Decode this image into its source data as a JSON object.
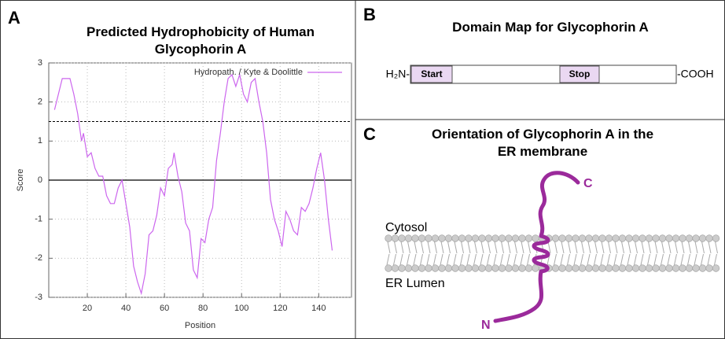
{
  "chart_data": {
    "type": "line",
    "panel_label": "A",
    "title": "Predicted Hydrophobicity of Human Glycophorin A",
    "xlabel": "Position",
    "ylabel": "Score",
    "x": [
      3,
      5,
      7,
      9,
      11,
      13,
      15,
      17,
      18,
      20,
      22,
      24,
      26,
      28,
      30,
      32,
      34,
      36,
      38,
      40,
      42,
      44,
      46,
      48,
      50,
      52,
      54,
      56,
      58,
      60,
      62,
      64,
      65,
      67,
      69,
      71,
      73,
      75,
      77,
      79,
      81,
      83,
      85,
      87,
      89,
      91,
      93,
      95,
      97,
      99,
      101,
      103,
      105,
      107,
      109,
      111,
      113,
      115,
      117,
      119,
      121,
      123,
      125,
      127,
      129,
      131,
      133,
      135,
      137,
      139,
      141,
      143,
      145,
      147
    ],
    "series": [
      {
        "name": "Hydropath. / Kyte & Doolittle",
        "color": "#cc66ee",
        "values": [
          1.8,
          2.2,
          2.6,
          2.6,
          2.6,
          2.2,
          1.7,
          1.0,
          1.2,
          0.6,
          0.7,
          0.3,
          0.1,
          0.1,
          -0.4,
          -0.6,
          -0.6,
          -0.2,
          0.0,
          -0.6,
          -1.2,
          -2.2,
          -2.6,
          -2.9,
          -2.4,
          -1.4,
          -1.3,
          -0.9,
          -0.2,
          -0.4,
          0.3,
          0.4,
          0.7,
          0.1,
          -0.3,
          -1.1,
          -1.3,
          -2.3,
          -2.5,
          -1.5,
          -1.6,
          -1.0,
          -0.7,
          0.5,
          1.2,
          2.0,
          2.6,
          2.7,
          2.4,
          2.7,
          2.2,
          2.0,
          2.5,
          2.6,
          2.0,
          1.5,
          0.7,
          -0.5,
          -1.0,
          -1.3,
          -1.7,
          -0.8,
          -1.0,
          -1.3,
          -1.4,
          -0.7,
          -0.8,
          -0.6,
          -0.2,
          0.3,
          0.7,
          0.0,
          -1.0,
          -1.8
        ]
      }
    ],
    "xlim": [
      0,
      157
    ],
    "ylim": [
      -3,
      3
    ],
    "xticks": [
      20,
      40,
      60,
      80,
      100,
      120,
      140
    ],
    "yticks": [
      -3,
      -2,
      -1,
      0,
      1,
      2,
      3
    ],
    "reference_lines": [
      {
        "value": 1.5,
        "style": "dashed"
      },
      {
        "value": 0,
        "style": "solid"
      }
    ],
    "grid": true,
    "legend": "top-right"
  },
  "domain_map": {
    "panel_label": "B",
    "title": "Domain Map for Glycophorin A",
    "n_terminus": "H₂N-",
    "c_terminus": "-COOH",
    "domains": [
      "Start",
      "Stop"
    ]
  },
  "orientation": {
    "panel_label": "C",
    "title": "Orientation of Glycophorin A in the ER membrane",
    "cytosol_label": "Cytosol",
    "lumen_label": "ER Lumen",
    "c_label": "C",
    "n_label": "N"
  }
}
